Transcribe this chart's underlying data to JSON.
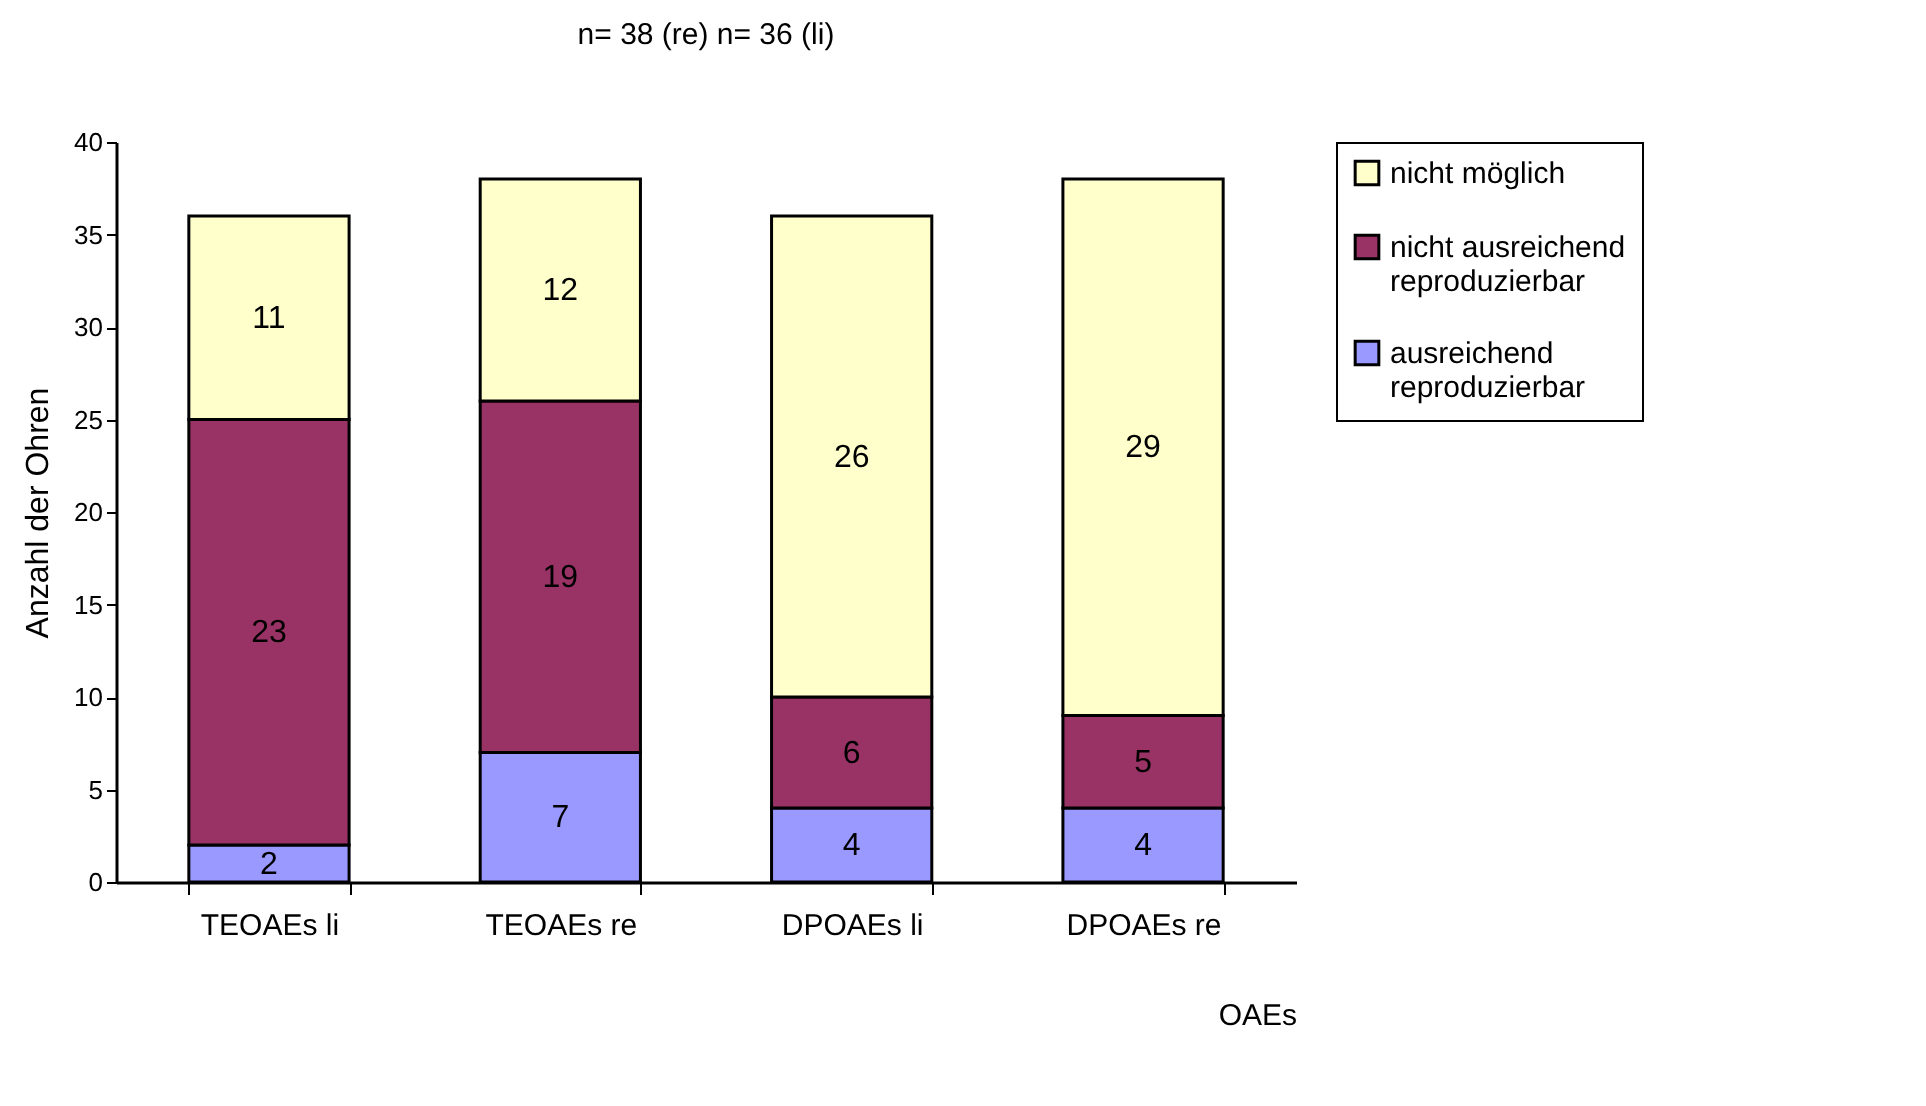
{
  "chart_data": {
    "type": "bar",
    "title": "n= 38 (re) n= 36 (li)",
    "xlabel": "OAEs",
    "ylabel": "Anzahl der Ohren",
    "categories": [
      "TEOAEs li",
      "TEOAEs re",
      "DPOAEs li",
      "DPOAEs re"
    ],
    "series": [
      {
        "name": "ausreichend reproduzierbar",
        "color": "#9999ff",
        "values": [
          2,
          7,
          4,
          4
        ]
      },
      {
        "name": "nicht ausreichend reproduzierbar",
        "color": "#993366",
        "values": [
          23,
          19,
          6,
          5
        ]
      },
      {
        "name": "nicht möglich",
        "color": "#ffffcc",
        "values": [
          11,
          12,
          26,
          29
        ]
      }
    ],
    "stacked": true,
    "ylim": [
      0,
      40
    ],
    "yticks": [
      0,
      5,
      10,
      15,
      20,
      25,
      30,
      35,
      40
    ],
    "grid": false,
    "legend": "right",
    "data_labels": true
  }
}
